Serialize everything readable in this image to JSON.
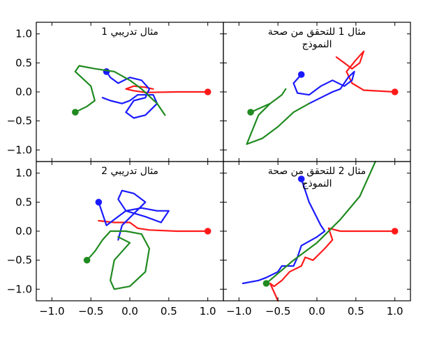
{
  "colors": {
    "red": "#ff1a1a",
    "blue": "#1a1aff",
    "green": "#1f8a1f"
  },
  "chart_data": [
    {
      "type": "line",
      "title": "مثال تدريبي 1",
      "xlim": [
        -1.2,
        1.2
      ],
      "ylim": [
        -1.2,
        1.2
      ],
      "grid": false,
      "xticks": [
        "−1.0",
        "−0.5",
        "0.0",
        "0.5",
        "1.0"
      ],
      "yticks": [
        "1.0",
        "0.5",
        "0.0",
        "−0.5",
        "−1.0"
      ],
      "series": [
        {
          "color": "red",
          "x": [
            1.0,
            0.6,
            0.2,
            0.05,
            -0.05,
            0.05,
            0.2,
            0.3
          ],
          "y": [
            0.0,
            0.0,
            -0.01,
            0.02,
            0.05,
            0.1,
            0.08,
            0.05
          ]
        },
        {
          "color": "blue",
          "x": [
            -0.3,
            -0.25,
            -0.15,
            0.0,
            0.15,
            0.25,
            0.2,
            0.05,
            -0.05,
            0.05,
            0.2,
            0.35,
            0.3,
            0.1,
            0.0,
            -0.1,
            -0.25,
            -0.35
          ],
          "y": [
            0.35,
            0.25,
            0.15,
            0.25,
            0.2,
            0.05,
            -0.1,
            -0.15,
            -0.35,
            -0.45,
            -0.4,
            -0.2,
            -0.05,
            -0.05,
            -0.15,
            -0.2,
            -0.15,
            -0.1
          ]
        },
        {
          "color": "green",
          "x": [
            -0.7,
            -0.55,
            -0.45,
            -0.5,
            -0.7,
            -0.65,
            -0.45,
            -0.2,
            0.0,
            0.15,
            0.35,
            0.45
          ],
          "y": [
            -0.35,
            -0.25,
            -0.15,
            0.1,
            0.35,
            0.45,
            0.4,
            0.35,
            0.2,
            0.05,
            -0.2,
            -0.4
          ]
        }
      ]
    },
    {
      "type": "line",
      "title": "مثال 1 للتحقق من صحة النموذج",
      "xlim": [
        -1.2,
        1.2
      ],
      "ylim": [
        -1.2,
        1.2
      ],
      "grid": false,
      "xticks": [
        "−1.0",
        "−0.5",
        "0.0",
        "0.5",
        "1.0"
      ],
      "yticks": [
        "1.0",
        "0.5",
        "0.0",
        "−0.5",
        "−1.0"
      ],
      "series": [
        {
          "color": "red",
          "x": [
            1.0,
            0.6,
            0.45,
            0.38,
            0.5,
            0.6,
            0.55,
            0.45,
            0.35,
            0.25
          ],
          "y": [
            0.0,
            0.03,
            0.15,
            0.35,
            0.55,
            0.7,
            0.5,
            0.4,
            0.5,
            0.6
          ]
        },
        {
          "color": "blue",
          "x": [
            -0.2,
            -0.3,
            -0.25,
            -0.1,
            0.05,
            0.2,
            0.35,
            0.45,
            0.48,
            0.4,
            0.3,
            0.2,
            0.05,
            -0.1
          ],
          "y": [
            0.3,
            0.15,
            -0.02,
            -0.05,
            0.1,
            0.2,
            0.1,
            0.2,
            0.35,
            0.25,
            0.05,
            0.0,
            -0.1,
            -0.2
          ]
        },
        {
          "color": "green",
          "x": [
            -0.85,
            -0.6,
            -0.45,
            -0.4,
            -0.45,
            -0.6,
            -0.75,
            -0.9,
            -0.7,
            -0.5,
            -0.3,
            -0.1
          ],
          "y": [
            -0.35,
            -0.2,
            -0.05,
            0.05,
            -0.05,
            -0.2,
            -0.4,
            -0.9,
            -0.8,
            -0.6,
            -0.35,
            -0.2
          ]
        }
      ]
    },
    {
      "type": "line",
      "title": "مثال تدريبي 2",
      "xlim": [
        -1.2,
        1.2
      ],
      "ylim": [
        -1.2,
        1.2
      ],
      "grid": false,
      "xticks": [
        "−1.0",
        "−0.5",
        "0.0",
        "0.5",
        "1.0"
      ],
      "yticks": [
        "1.0",
        "0.5",
        "0.0",
        "−0.5",
        "−1.0"
      ],
      "series": [
        {
          "color": "red",
          "x": [
            1.0,
            0.6,
            0.25,
            0.1,
            0.0,
            -0.2,
            -0.4
          ],
          "y": [
            0.0,
            0.0,
            0.02,
            0.05,
            0.15,
            0.15,
            0.18
          ]
        },
        {
          "color": "blue",
          "x": [
            -0.4,
            -0.35,
            -0.3,
            -0.2,
            -0.05,
            0.15,
            0.35,
            0.5,
            0.4,
            0.2,
            -0.05,
            -0.15,
            -0.1,
            0.05,
            0.2,
            0.05,
            -0.1,
            -0.15
          ],
          "y": [
            0.5,
            0.3,
            0.1,
            0.2,
            0.35,
            0.4,
            0.35,
            0.35,
            0.15,
            0.25,
            0.35,
            0.55,
            0.7,
            0.65,
            0.5,
            0.3,
            0.1,
            -0.15
          ]
        },
        {
          "color": "green",
          "x": [
            -0.55,
            -0.45,
            -0.35,
            -0.25,
            -0.05,
            0.15,
            0.25,
            0.2,
            0.0,
            -0.2,
            -0.25,
            -0.2,
            -0.1,
            0.0,
            -0.15
          ],
          "y": [
            -0.5,
            -0.35,
            -0.15,
            0.0,
            0.0,
            -0.05,
            -0.3,
            -0.7,
            -0.95,
            -1.0,
            -0.85,
            -0.5,
            -0.35,
            -0.2,
            -0.1
          ]
        }
      ]
    },
    {
      "type": "line",
      "title": "مثال 2 للتحقق من صحة النموذج",
      "xlim": [
        -1.2,
        1.2
      ],
      "ylim": [
        -1.2,
        1.2
      ],
      "grid": false,
      "xticks": [
        "−1.0",
        "−0.5",
        "0.0",
        "0.5",
        "1.0"
      ],
      "yticks": [
        "1.0",
        "0.5",
        "0.0",
        "−0.5",
        "−1.0"
      ],
      "series": [
        {
          "color": "red",
          "x": [
            1.0,
            0.6,
            0.3,
            0.15,
            0.2,
            0.1,
            -0.05,
            -0.15,
            -0.2,
            -0.35,
            -0.45,
            -0.55,
            -0.6,
            -0.5
          ],
          "y": [
            0.0,
            0.0,
            0.0,
            0.05,
            -0.15,
            -0.3,
            -0.5,
            -0.45,
            -0.6,
            -0.7,
            -0.85,
            -0.95,
            -0.9,
            -1.2
          ]
        },
        {
          "color": "blue",
          "x": [
            -0.2,
            -0.1,
            0.05,
            0.1,
            0.0,
            -0.2,
            -0.25,
            -0.3,
            -0.45,
            -0.5,
            -0.65,
            -0.75,
            -0.95
          ],
          "y": [
            0.9,
            0.5,
            0.1,
            0.0,
            -0.1,
            -0.25,
            -0.45,
            -0.6,
            -0.6,
            -0.7,
            -0.8,
            -0.85,
            -0.9
          ]
        },
        {
          "color": "green",
          "x": [
            -0.65,
            -0.3,
            0.0,
            0.3,
            0.55,
            0.75
          ],
          "y": [
            -0.9,
            -0.5,
            -0.2,
            0.2,
            0.6,
            1.2
          ]
        }
      ]
    }
  ]
}
